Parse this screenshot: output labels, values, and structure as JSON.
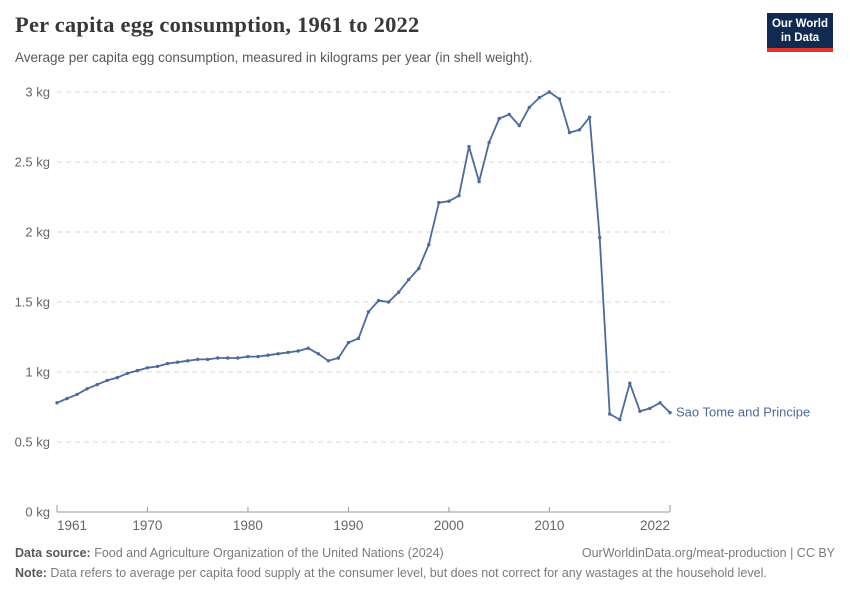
{
  "header": {
    "title": "Per capita egg consumption, 1961 to 2022",
    "subtitle": "Average per capita egg consumption, measured in kilograms per year (in shell weight).",
    "logo": {
      "line1": "Our World",
      "line2": "in Data",
      "bg_color": "#102a52",
      "stripe_color": "#e0362a"
    }
  },
  "chart_data": {
    "type": "line",
    "title": "Per capita egg consumption, 1961 to 2022",
    "xlabel": "",
    "ylabel": "",
    "xlim": [
      1961,
      2022
    ],
    "ylim": [
      0,
      3
    ],
    "grid": "horizontal-dashed",
    "legend_position": "end-of-line-label",
    "unit": "kg",
    "yticks": [
      {
        "value": 0,
        "label": "0 kg"
      },
      {
        "value": 0.5,
        "label": "0.5 kg"
      },
      {
        "value": 1,
        "label": "1 kg"
      },
      {
        "value": 1.5,
        "label": "1.5 kg"
      },
      {
        "value": 2,
        "label": "2 kg"
      },
      {
        "value": 2.5,
        "label": "2.5 kg"
      },
      {
        "value": 3,
        "label": "3 kg"
      }
    ],
    "xticks": [
      {
        "year": 1961,
        "label": "1961",
        "anchor": "start"
      },
      {
        "year": 1970,
        "label": "1970",
        "anchor": "middle"
      },
      {
        "year": 1980,
        "label": "1980",
        "anchor": "middle"
      },
      {
        "year": 1990,
        "label": "1990",
        "anchor": "middle"
      },
      {
        "year": 2000,
        "label": "2000",
        "anchor": "middle"
      },
      {
        "year": 2010,
        "label": "2010",
        "anchor": "middle"
      },
      {
        "year": 2022,
        "label": "2022",
        "anchor": "end"
      }
    ],
    "series": [
      {
        "name": "Sao Tome and Principe",
        "color": "#4C6A9C",
        "years": [
          1961,
          1962,
          1963,
          1964,
          1965,
          1966,
          1967,
          1968,
          1969,
          1970,
          1971,
          1972,
          1973,
          1974,
          1975,
          1976,
          1977,
          1978,
          1979,
          1980,
          1981,
          1982,
          1983,
          1984,
          1985,
          1986,
          1987,
          1988,
          1989,
          1990,
          1991,
          1992,
          1993,
          1994,
          1995,
          1996,
          1997,
          1998,
          1999,
          2000,
          2001,
          2002,
          2003,
          2004,
          2005,
          2006,
          2007,
          2008,
          2009,
          2010,
          2011,
          2012,
          2013,
          2014,
          2015,
          2016,
          2017,
          2018,
          2019,
          2020,
          2021,
          2022
        ],
        "values": [
          0.78,
          0.81,
          0.84,
          0.88,
          0.91,
          0.94,
          0.96,
          0.99,
          1.01,
          1.03,
          1.04,
          1.06,
          1.07,
          1.08,
          1.09,
          1.09,
          1.1,
          1.1,
          1.1,
          1.11,
          1.11,
          1.12,
          1.13,
          1.14,
          1.15,
          1.17,
          1.13,
          1.08,
          1.1,
          1.21,
          1.24,
          1.43,
          1.51,
          1.5,
          1.57,
          1.66,
          1.74,
          1.91,
          2.21,
          2.22,
          2.26,
          2.61,
          2.36,
          2.64,
          2.81,
          2.84,
          2.76,
          2.89,
          2.96,
          3.0,
          2.95,
          2.71,
          2.73,
          2.82,
          1.96,
          0.7,
          0.66,
          0.92,
          0.72,
          0.74,
          0.78,
          0.71
        ]
      }
    ],
    "colors": {
      "grid": "#d9d9d9",
      "axis": "#999999",
      "tick_label": "#666666"
    }
  },
  "footer": {
    "source_label": "Data source:",
    "source_text": " Food and Agriculture Organization of the United Nations (2024)",
    "link_text": "OurWorldinData.org/meat-production | CC BY",
    "note_label": "Note:",
    "note_text": " Data refers to average per capita food supply at the consumer level, but does not correct for any wastages at the household level."
  }
}
